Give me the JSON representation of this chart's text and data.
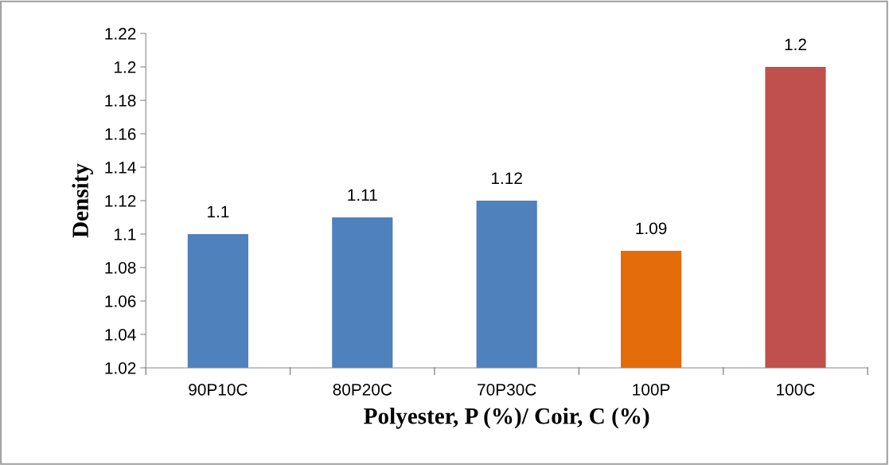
{
  "chart_data": {
    "type": "bar",
    "xlabel": "Polyester, P (%)/ Coir, C (%)",
    "ylabel": "Density",
    "categories": [
      "90P10C",
      "80P20C",
      "70P30C",
      "100P",
      "100C"
    ],
    "values": [
      1.1,
      1.11,
      1.12,
      1.09,
      1.2
    ],
    "colors": [
      "#4f81bd",
      "#4f81bd",
      "#4f81bd",
      "#e46c0a",
      "#c0504d"
    ],
    "ylim": [
      1.02,
      1.22
    ],
    "yticks": [
      {
        "value": 1.02,
        "label": "1.02"
      },
      {
        "value": 1.04,
        "label": "1.04"
      },
      {
        "value": 1.06,
        "label": "1.06"
      },
      {
        "value": 1.08,
        "label": "1.08"
      },
      {
        "value": 1.1,
        "label": "1.1"
      },
      {
        "value": 1.12,
        "label": "1.12"
      },
      {
        "value": 1.14,
        "label": "1.14"
      },
      {
        "value": 1.16,
        "label": "1.16"
      },
      {
        "value": 1.18,
        "label": "1.18"
      },
      {
        "value": 1.2,
        "label": "1.2"
      },
      {
        "value": 1.22,
        "label": "1.22"
      }
    ],
    "data_labels": true,
    "grid": false,
    "legend": false
  }
}
